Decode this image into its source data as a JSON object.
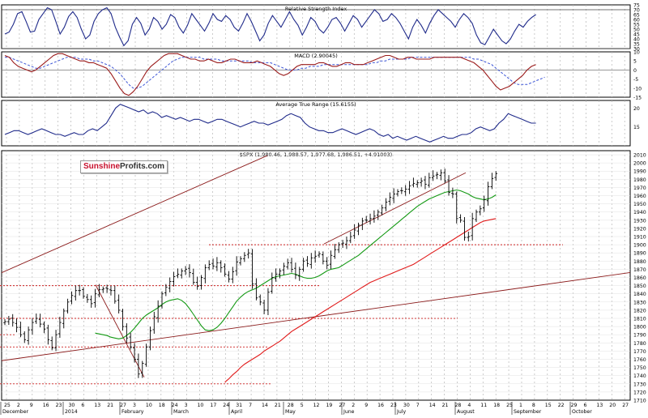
{
  "logo": {
    "part1": "Sunshine",
    "part2": "Profits.com"
  },
  "colors": {
    "rsi": "#1f2a8a",
    "macd": "#9b1b1b",
    "signal": "#3c55d6",
    "atr": "#1f2a8a",
    "price": "#000000",
    "ma_short": "#139913",
    "ma_long": "#e11b1b",
    "trend": "#8b1a1a",
    "level": "#cc1f1f",
    "grid": "#b5b5b5"
  },
  "chart_data": [
    {
      "type": "line",
      "title": "Relative Strength Index",
      "ylim": [
        30,
        75
      ],
      "yticks": [
        "75",
        "70",
        "65",
        "60",
        "55",
        "50",
        "45",
        "40",
        "35",
        "30"
      ],
      "reference_lines": [
        70,
        30
      ],
      "series": [
        {
          "values": [
            45,
            47,
            55,
            66,
            68,
            58,
            47,
            48,
            60,
            66,
            72,
            70,
            58,
            45,
            52,
            63,
            68,
            62,
            50,
            40,
            44,
            58,
            66,
            70,
            72,
            66,
            52,
            42,
            33,
            38,
            55,
            62,
            56,
            44,
            50,
            62,
            58,
            50,
            55,
            65,
            62,
            52,
            46,
            54,
            66,
            60,
            54,
            48,
            56,
            66,
            60,
            58,
            64,
            60,
            52,
            48,
            56,
            66,
            58,
            48,
            38,
            44,
            56,
            64,
            58,
            52,
            60,
            68,
            60,
            54,
            44,
            52,
            62,
            58,
            50,
            46,
            52,
            60,
            62,
            56,
            48,
            56,
            64,
            60,
            52,
            58,
            64,
            70,
            66,
            58,
            60,
            66,
            62,
            56,
            48,
            40,
            52,
            60,
            54,
            46,
            56,
            64,
            70,
            66,
            62,
            58,
            52,
            60,
            66,
            62,
            56,
            44,
            36,
            34,
            42,
            50,
            44,
            38,
            35,
            40,
            48,
            55,
            52,
            58,
            62,
            65
          ]
        }
      ]
    },
    {
      "type": "line",
      "title": "MACD (2.90045)",
      "ylim": [
        -15,
        10
      ],
      "yticks": [
        "10",
        "5",
        "0",
        "-5",
        "-10",
        "-15"
      ],
      "series": [
        {
          "values": [
            8,
            7,
            4,
            2,
            1,
            0,
            -1,
            0,
            2,
            4,
            6,
            8,
            9,
            9,
            8,
            7,
            6,
            5,
            5,
            4,
            4,
            3,
            2,
            1,
            -2,
            -6,
            -10,
            -13,
            -14,
            -12,
            -9,
            -5,
            -1,
            2,
            4,
            6,
            8,
            9,
            9,
            9,
            8,
            7,
            6,
            6,
            5,
            5,
            6,
            5,
            4,
            4,
            5,
            6,
            6,
            5,
            4,
            4,
            4,
            5,
            4,
            3,
            2,
            0,
            -2,
            -3,
            -2,
            0,
            2,
            3,
            3,
            3,
            3,
            4,
            4,
            3,
            2,
            2,
            3,
            4,
            4,
            3,
            3,
            3,
            4,
            5,
            6,
            7,
            8,
            8,
            7,
            6,
            6,
            7,
            7,
            6,
            6,
            6,
            6,
            7,
            7,
            7,
            7,
            7,
            7,
            7,
            6,
            5,
            4,
            2,
            0,
            -3,
            -6,
            -9,
            -11,
            -10,
            -9,
            -7,
            -5,
            -3,
            0,
            2,
            3
          ]
        },
        {
          "values": [
            7,
            7,
            6,
            5,
            4,
            3,
            2,
            1,
            1,
            2,
            3,
            4,
            5,
            6,
            7,
            7,
            7,
            6,
            6,
            6,
            5,
            5,
            4,
            3,
            2,
            0,
            -2,
            -5,
            -8,
            -10,
            -10,
            -9,
            -7,
            -5,
            -3,
            -1,
            1,
            3,
            5,
            6,
            7,
            7,
            7,
            7,
            7,
            6,
            6,
            6,
            6,
            5,
            5,
            5,
            5,
            5,
            5,
            5,
            4,
            4,
            4,
            4,
            4,
            3,
            2,
            1,
            0,
            0,
            0,
            1,
            1,
            2,
            2,
            2,
            3,
            3,
            3,
            3,
            3,
            3,
            3,
            3,
            3,
            3,
            3,
            4,
            4,
            5,
            5,
            6,
            6,
            6,
            6,
            6,
            7,
            7,
            7,
            7,
            7,
            7,
            7,
            7,
            7,
            7,
            7,
            7,
            7,
            7,
            6,
            6,
            5,
            4,
            3,
            1,
            -1,
            -3,
            -5,
            -7,
            -8,
            -8,
            -8,
            -7,
            -6,
            -5,
            -4
          ]
        }
      ]
    },
    {
      "type": "line",
      "title": "Average True Range (15.6155)",
      "ylim": [
        10,
        22
      ],
      "yticks": [
        "20",
        "15"
      ],
      "series": [
        {
          "values": [
            13,
            13.5,
            14,
            14,
            13.5,
            13,
            13.5,
            14,
            14.5,
            14,
            13.5,
            13,
            13,
            12.5,
            13,
            13.5,
            13,
            13,
            14,
            14.5,
            14,
            15,
            16,
            18,
            20,
            21,
            20.5,
            20,
            19.5,
            19,
            19.5,
            18.5,
            19,
            18.5,
            17.5,
            18,
            17.5,
            17,
            17.5,
            17,
            16.5,
            17,
            17,
            16.5,
            16,
            16.5,
            17,
            17,
            16.5,
            16,
            15.5,
            15,
            15.5,
            16,
            16.5,
            16,
            16,
            15.5,
            16,
            16.5,
            17,
            18,
            18.5,
            18,
            17.5,
            16,
            15,
            14.5,
            14,
            14,
            13.5,
            13.5,
            14,
            14.5,
            14,
            13.5,
            13,
            13.5,
            14,
            14.5,
            14,
            13,
            12.5,
            13,
            12,
            12.5,
            12,
            11.5,
            12,
            12.5,
            12,
            11.5,
            11,
            11.5,
            12,
            12.5,
            12,
            12,
            12.5,
            13,
            13,
            13.5,
            14.5,
            15,
            14.5,
            14,
            14.5,
            16,
            17,
            18.5,
            18,
            17.5,
            17,
            16.5,
            16,
            16
          ]
        }
      ]
    },
    {
      "type": "bar",
      "title": "$SPX (1,980.46, 1,988.57, 1,977.68, 1,986.51, +4.91003)",
      "ylim": [
        1710,
        2015
      ],
      "yticks": [
        "2010",
        "2000",
        "1990",
        "1980",
        "1970",
        "1960",
        "1950",
        "1940",
        "1930",
        "1920",
        "1910",
        "1900",
        "1890",
        "1880",
        "1870",
        "1860",
        "1850",
        "1840",
        "1830",
        "1820",
        "1810",
        "1800",
        "1790",
        "1780",
        "1770",
        "1760",
        "1750",
        "1740",
        "1730",
        "1720",
        "1710"
      ],
      "xticks": [
        "25",
        "2",
        "9",
        "16",
        "23",
        "30",
        "6",
        "13",
        "21",
        "27",
        "3",
        "10",
        "18",
        "24",
        "3",
        "10",
        "17",
        "24",
        "31",
        "7",
        "14",
        "21",
        "28",
        "5",
        "12",
        "19",
        "27",
        "2",
        "9",
        "16",
        "23",
        "30",
        "7",
        "14",
        "21",
        "28",
        "4",
        "11",
        "18",
        "25",
        "1",
        "8",
        "15",
        "22",
        "29",
        "6",
        "13",
        "20",
        "27"
      ],
      "months": [
        "December",
        "2014",
        "February",
        "March",
        "April",
        "May",
        "June",
        "July",
        "August",
        "September",
        "October"
      ],
      "price": [
        1806,
        1809,
        1805,
        1799,
        1790,
        1784,
        1796,
        1805,
        1810,
        1803,
        1797,
        1784,
        1774,
        1790,
        1805,
        1819,
        1830,
        1838,
        1844,
        1844,
        1837,
        1833,
        1828,
        1840,
        1845,
        1846,
        1846,
        1844,
        1831,
        1820,
        1800,
        1786,
        1775,
        1760,
        1742,
        1755,
        1775,
        1795,
        1812,
        1825,
        1840,
        1848,
        1855,
        1861,
        1864,
        1868,
        1870,
        1866,
        1854,
        1849,
        1860,
        1872,
        1876,
        1874,
        1878,
        1872,
        1864,
        1858,
        1867,
        1879,
        1883,
        1887,
        1890,
        1852,
        1835,
        1830,
        1820,
        1842,
        1860,
        1864,
        1868,
        1874,
        1878,
        1870,
        1863,
        1870,
        1880,
        1877,
        1884,
        1886,
        1889,
        1880,
        1875,
        1887,
        1894,
        1900,
        1902,
        1905,
        1910,
        1918,
        1924,
        1929,
        1930,
        1932,
        1935,
        1940,
        1945,
        1952,
        1958,
        1962,
        1965,
        1966,
        1968,
        1972,
        1975,
        1976,
        1978,
        1974,
        1982,
        1984,
        1986,
        1988,
        1978,
        1964,
        1962,
        1932,
        1930,
        1909,
        1910,
        1932,
        1940,
        1944,
        1955,
        1971,
        1981,
        1987
      ],
      "ma_short": [
        1792,
        1791,
        1790,
        1789,
        1787,
        1786,
        1785,
        1786,
        1789,
        1793,
        1798,
        1804,
        1810,
        1814,
        1817,
        1820,
        1823,
        1827,
        1830,
        1832,
        1833,
        1834,
        1832,
        1828,
        1822,
        1815,
        1808,
        1801,
        1796,
        1795,
        1796,
        1799,
        1804,
        1810,
        1817,
        1824,
        1831,
        1836,
        1840,
        1843,
        1845,
        1847,
        1850,
        1853,
        1856,
        1859,
        1861,
        1862,
        1863,
        1864,
        1865,
        1864,
        1862,
        1860,
        1859,
        1859,
        1860,
        1862,
        1865,
        1868,
        1870,
        1871,
        1872,
        1875,
        1878,
        1881,
        1884,
        1887,
        1891,
        1895,
        1899,
        1903,
        1907,
        1911,
        1915,
        1919,
        1923,
        1927,
        1931,
        1935,
        1939,
        1943,
        1947,
        1950,
        1953,
        1956,
        1958,
        1960,
        1962,
        1964,
        1965,
        1966,
        1967,
        1966,
        1964,
        1962,
        1959,
        1957,
        1956,
        1955,
        1956,
        1958,
        1961
      ],
      "ma_long": [
        1732,
        1736,
        1741,
        1745,
        1750,
        1754,
        1757,
        1760,
        1763,
        1766,
        1770,
        1773,
        1776,
        1779,
        1782,
        1786,
        1790,
        1794,
        1797,
        1800,
        1803,
        1806,
        1809,
        1812,
        1815,
        1818,
        1821,
        1824,
        1827,
        1830,
        1833,
        1836,
        1839,
        1842,
        1845,
        1848,
        1851,
        1854,
        1856,
        1858,
        1860,
        1862,
        1864,
        1866,
        1868,
        1870,
        1872,
        1874,
        1876,
        1879,
        1882,
        1885,
        1888,
        1891,
        1894,
        1897,
        1900,
        1903,
        1906,
        1909,
        1912,
        1915,
        1918,
        1921,
        1924,
        1927,
        1929,
        1930,
        1931,
        1932
      ]
    }
  ]
}
